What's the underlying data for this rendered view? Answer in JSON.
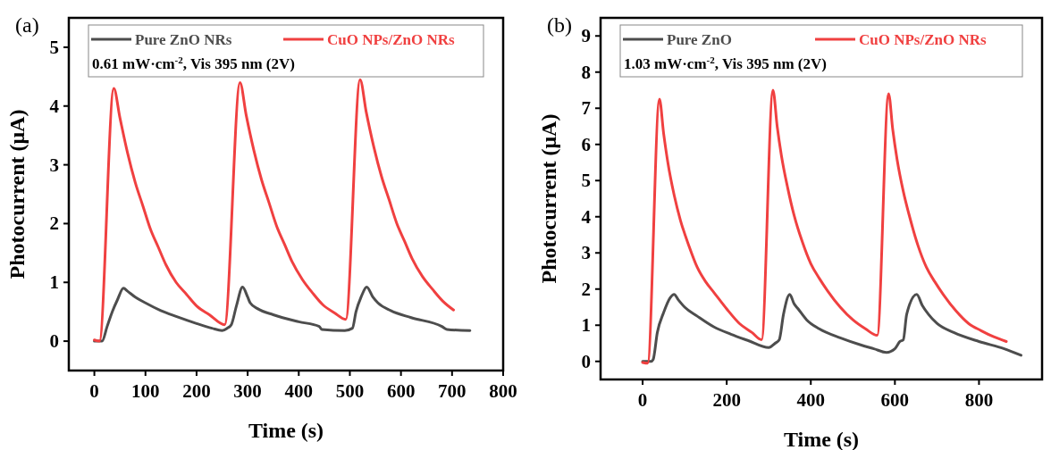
{
  "chart_data": [
    {
      "type": "line",
      "xlabel": "Time (s)",
      "ylabel": "Photocurrent (μA)",
      "annotations": [
        "(a)",
        "0.61 mW·cm$^{-2}$, Vis 395 nm (2V)"
      ],
      "xlim": [
        -50,
        800
      ],
      "ylim": [
        -0.5,
        5.5
      ],
      "xticks": [
        0,
        100,
        200,
        300,
        400,
        500,
        600,
        700,
        800
      ],
      "yticks": [
        0,
        1,
        2,
        3,
        4,
        5
      ],
      "grid": false,
      "legend": "top",
      "line_style": "solid",
      "series": [
        {
          "name": "Pure ZnO NRs",
          "color": "#4d4d4d",
          "x": [
            0,
            15,
            25,
            35,
            45,
            57,
            65,
            80,
            100,
            130,
            160,
            200,
            230,
            250,
            260,
            268,
            278,
            290,
            300,
            305,
            320,
            350,
            400,
            440,
            445,
            490,
            505,
            512,
            522,
            533,
            545,
            555,
            580,
            620,
            680,
            690,
            735
          ],
          "values": [
            0,
            0,
            0.25,
            0.5,
            0.7,
            0.9,
            0.85,
            0.75,
            0.65,
            0.52,
            0.42,
            0.3,
            0.22,
            0.18,
            0.22,
            0.28,
            0.6,
            0.92,
            0.75,
            0.65,
            0.55,
            0.45,
            0.33,
            0.25,
            0.2,
            0.18,
            0.22,
            0.5,
            0.75,
            0.92,
            0.75,
            0.65,
            0.52,
            0.4,
            0.25,
            0.2,
            0.18
          ]
        },
        {
          "name": "CuO NPs/ZnO NRs",
          "color": "#f04040",
          "x": [
            0,
            10,
            38,
            50,
            65,
            80,
            95,
            110,
            125,
            140,
            160,
            180,
            200,
            225,
            255,
            285,
            297,
            312,
            327,
            342,
            357,
            372,
            387,
            407,
            427,
            447,
            470,
            492,
            520,
            532,
            547,
            562,
            577,
            592,
            607,
            622,
            642,
            662,
            682,
            703
          ],
          "values": [
            0.02,
            0,
            4.3,
            3.8,
            3.2,
            2.7,
            2.3,
            1.9,
            1.6,
            1.3,
            1.0,
            0.8,
            0.6,
            0.45,
            0.28,
            4.4,
            3.85,
            3.25,
            2.75,
            2.35,
            1.95,
            1.65,
            1.35,
            1.05,
            0.82,
            0.62,
            0.48,
            0.37,
            4.45,
            3.9,
            3.3,
            2.8,
            2.4,
            2.0,
            1.7,
            1.4,
            1.1,
            0.88,
            0.68,
            0.53
          ]
        }
      ]
    },
    {
      "type": "line",
      "xlabel": "Time (s)",
      "ylabel": "Photocurrent (μA)",
      "annotations": [
        "(b)",
        "1.03 mW·cm$^{-2}$, Vis 395 nm (2V)"
      ],
      "xlim": [
        -100,
        950
      ],
      "ylim": [
        -0.5,
        9.5
      ],
      "xticks": [
        0,
        200,
        400,
        600,
        800
      ],
      "yticks": [
        0,
        1,
        2,
        3,
        4,
        5,
        6,
        7,
        8,
        9
      ],
      "grid": false,
      "legend": "top",
      "line_style": "solid",
      "series": [
        {
          "name": "Pure ZnO",
          "color": "#4d4d4d",
          "x": [
            0,
            20,
            25,
            35,
            50,
            65,
            75,
            85,
            100,
            130,
            170,
            210,
            250,
            300,
            315,
            325,
            335,
            350,
            360,
            370,
            390,
            420,
            470,
            520,
            550,
            580,
            600,
            612,
            620,
            628,
            652,
            665,
            680,
            700,
            740,
            800,
            860,
            900
          ],
          "values": [
            0,
            0,
            0.05,
            0.8,
            1.35,
            1.75,
            1.85,
            1.7,
            1.5,
            1.25,
            0.95,
            0.75,
            0.58,
            0.38,
            0.5,
            0.6,
            1.3,
            1.85,
            1.6,
            1.45,
            1.15,
            0.9,
            0.65,
            0.45,
            0.35,
            0.25,
            0.35,
            0.55,
            0.6,
            1.3,
            1.85,
            1.55,
            1.3,
            1.05,
            0.8,
            0.55,
            0.35,
            0.17
          ]
        },
        {
          "name": "CuO NPs/ZnO NRs",
          "color": "#f04040",
          "x": [
            0,
            12,
            40,
            50,
            60,
            75,
            90,
            110,
            130,
            150,
            170,
            200,
            230,
            260,
            283,
            310,
            320,
            330,
            345,
            360,
            380,
            400,
            420,
            440,
            470,
            500,
            530,
            558,
            585,
            595,
            605,
            620,
            635,
            655,
            675,
            695,
            715,
            745,
            775,
            805,
            835,
            865
          ],
          "values": [
            -0.03,
            -0.05,
            7.25,
            6.3,
            5.5,
            4.6,
            3.9,
            3.2,
            2.6,
            2.2,
            1.9,
            1.45,
            1.05,
            0.8,
            0.6,
            7.5,
            6.5,
            5.7,
            4.8,
            4.05,
            3.3,
            2.7,
            2.3,
            1.95,
            1.5,
            1.15,
            0.9,
            0.72,
            7.4,
            6.4,
            5.6,
            4.7,
            4.0,
            3.2,
            2.6,
            2.2,
            1.85,
            1.4,
            1.05,
            0.85,
            0.68,
            0.55
          ]
        }
      ]
    }
  ]
}
